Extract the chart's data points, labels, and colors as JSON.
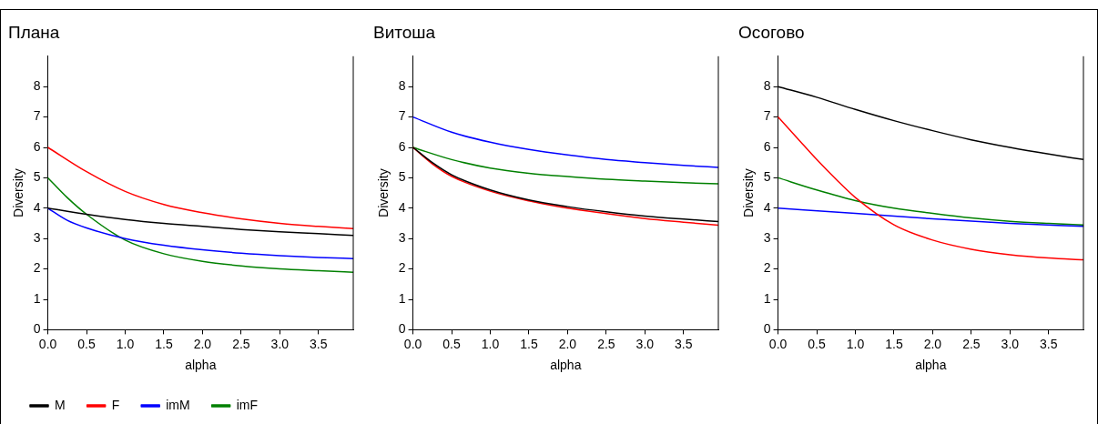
{
  "chart_data": [
    {
      "type": "line",
      "title": "Плана",
      "xlabel": "alpha",
      "ylabel": "Diversity",
      "xlim": [
        0,
        3.95
      ],
      "ylim": [
        0,
        9
      ],
      "xticks": [
        {
          "value": 0,
          "label": "0.0"
        },
        {
          "value": 0.5,
          "label": "0.5"
        },
        {
          "value": 1,
          "label": "1.0"
        },
        {
          "value": 1.5,
          "label": "1.5"
        },
        {
          "value": 2,
          "label": "2.0"
        },
        {
          "value": 2.5,
          "label": "2.5"
        },
        {
          "value": 3,
          "label": "3.0"
        },
        {
          "value": 3.5,
          "label": "3.5"
        }
      ],
      "yticks": [
        0,
        1,
        2,
        3,
        4,
        5,
        6,
        7,
        8
      ],
      "grid": false,
      "legend": "bottom",
      "marker": "none",
      "line_style": "solid",
      "series": [
        {
          "name": "M",
          "color": "#000000",
          "x": [
            0,
            0.5,
            1,
            1.5,
            2,
            2.5,
            3,
            3.5,
            3.95
          ],
          "values": [
            4,
            3.8,
            3.63,
            3.5,
            3.4,
            3.3,
            3.22,
            3.16,
            3.1
          ]
        },
        {
          "name": "F",
          "color": "#ff0000",
          "x": [
            0,
            0.5,
            1,
            1.5,
            2,
            2.5,
            3,
            3.5,
            3.95
          ],
          "values": [
            6,
            5.2,
            4.55,
            4.12,
            3.85,
            3.65,
            3.5,
            3.4,
            3.33
          ]
        },
        {
          "name": "imM",
          "color": "#0000ff",
          "x": [
            0,
            0.25,
            0.5,
            1,
            1.5,
            2,
            2.5,
            3,
            3.5,
            3.95
          ],
          "values": [
            4,
            3.6,
            3.35,
            3.0,
            2.78,
            2.63,
            2.52,
            2.44,
            2.38,
            2.34
          ]
        },
        {
          "name": "imF",
          "color": "#008000",
          "x": [
            0,
            0.25,
            0.5,
            1,
            1.5,
            2,
            2.5,
            3,
            3.5,
            3.95
          ],
          "values": [
            5,
            4.35,
            3.8,
            2.95,
            2.5,
            2.25,
            2.1,
            2.0,
            1.94,
            1.89
          ]
        }
      ]
    },
    {
      "type": "line",
      "title": "Витоша",
      "xlabel": "alpha",
      "ylabel": "Diversity",
      "xlim": [
        0,
        3.95
      ],
      "ylim": [
        0,
        9
      ],
      "xticks": [
        {
          "value": 0,
          "label": "0.0"
        },
        {
          "value": 0.5,
          "label": "0.5"
        },
        {
          "value": 1,
          "label": "1.0"
        },
        {
          "value": 1.5,
          "label": "1.5"
        },
        {
          "value": 2,
          "label": "2.0"
        },
        {
          "value": 2.5,
          "label": "2.5"
        },
        {
          "value": 3,
          "label": "3.0"
        },
        {
          "value": 3.5,
          "label": "3.5"
        }
      ],
      "yticks": [
        0,
        1,
        2,
        3,
        4,
        5,
        6,
        7,
        8
      ],
      "grid": false,
      "marker": "none",
      "line_style": "solid",
      "series": [
        {
          "color": "#000000",
          "x": [
            0,
            0.25,
            0.5,
            1,
            1.5,
            2,
            2.5,
            3,
            3.5,
            3.95
          ],
          "values": [
            6,
            5.5,
            5.1,
            4.6,
            4.27,
            4.05,
            3.88,
            3.74,
            3.64,
            3.56
          ]
        },
        {
          "color": "#ff0000",
          "x": [
            0,
            0.25,
            0.5,
            1,
            1.5,
            2,
            2.5,
            3,
            3.5,
            3.95
          ],
          "values": [
            6,
            5.46,
            5.05,
            4.56,
            4.24,
            4.0,
            3.82,
            3.66,
            3.54,
            3.44
          ]
        },
        {
          "color": "#0000ff",
          "x": [
            0,
            0.5,
            1,
            1.5,
            2,
            2.5,
            3,
            3.5,
            3.95
          ],
          "values": [
            7,
            6.5,
            6.17,
            5.93,
            5.75,
            5.6,
            5.5,
            5.41,
            5.34
          ]
        },
        {
          "color": "#008000",
          "x": [
            0,
            0.5,
            1,
            1.5,
            2,
            2.5,
            3,
            3.5,
            3.95
          ],
          "values": [
            6,
            5.6,
            5.32,
            5.15,
            5.04,
            4.95,
            4.89,
            4.84,
            4.8
          ]
        }
      ]
    },
    {
      "type": "line",
      "title": "Осогово",
      "xlabel": "alpha",
      "ylabel": "Diversity",
      "xlim": [
        0,
        3.95
      ],
      "ylim": [
        0,
        9
      ],
      "xticks": [
        {
          "value": 0,
          "label": "0.0"
        },
        {
          "value": 0.5,
          "label": "0.5"
        },
        {
          "value": 1,
          "label": "1.0"
        },
        {
          "value": 1.5,
          "label": "1.5"
        },
        {
          "value": 2,
          "label": "2.0"
        },
        {
          "value": 2.5,
          "label": "2.5"
        },
        {
          "value": 3,
          "label": "3.0"
        },
        {
          "value": 3.5,
          "label": "3.5"
        }
      ],
      "yticks": [
        0,
        1,
        2,
        3,
        4,
        5,
        6,
        7,
        8
      ],
      "grid": false,
      "marker": "none",
      "line_style": "solid",
      "series": [
        {
          "color": "#000000",
          "x": [
            0,
            0.5,
            1,
            1.5,
            2,
            2.5,
            3,
            3.5,
            3.95
          ],
          "values": [
            8,
            7.65,
            7.25,
            6.88,
            6.55,
            6.25,
            6.0,
            5.78,
            5.6
          ]
        },
        {
          "color": "#ff0000",
          "x": [
            0,
            0.25,
            0.5,
            0.75,
            1,
            1.5,
            2,
            2.5,
            3,
            3.5,
            3.95
          ],
          "values": [
            7,
            6.3,
            5.6,
            4.95,
            4.35,
            3.45,
            2.95,
            2.65,
            2.47,
            2.36,
            2.3
          ]
        },
        {
          "color": "#0000ff",
          "x": [
            0,
            1,
            2,
            3,
            3.95
          ],
          "values": [
            4,
            3.83,
            3.65,
            3.5,
            3.4
          ]
        },
        {
          "color": "#008000",
          "x": [
            0,
            0.5,
            1,
            1.5,
            2,
            2.5,
            3,
            3.5,
            3.95
          ],
          "values": [
            5,
            4.6,
            4.25,
            4.0,
            3.83,
            3.68,
            3.57,
            3.5,
            3.45
          ]
        }
      ]
    }
  ]
}
